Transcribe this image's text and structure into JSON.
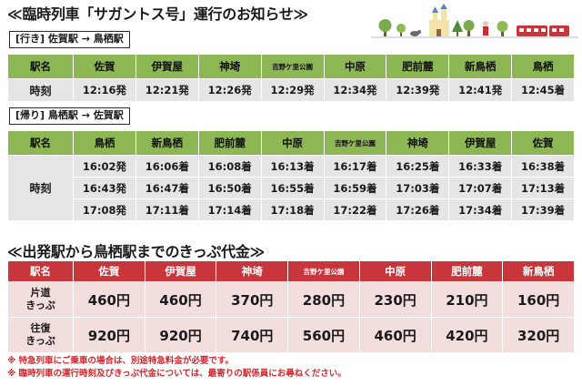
{
  "title": "≪臨時列車「サガントス号」運行のお知らせ≫",
  "outbound": {
    "route": "[行き] 佐賀駅 → 鳥栖駅",
    "header_label": "駅名",
    "stations": [
      "佐賀",
      "伊賀屋",
      "神埼",
      "吉野ケ里公園",
      "中原",
      "肥前麓",
      "新鳥栖",
      "鳥栖"
    ],
    "row_label": "時刻",
    "times": [
      "12:16発",
      "12:21発",
      "12:26発",
      "12:29発",
      "12:34発",
      "12:39発",
      "12:41発",
      "12:45着"
    ]
  },
  "return": {
    "route": "[帰り] 鳥栖駅 → 佐賀駅",
    "header_label": "駅名",
    "stations": [
      "鳥栖",
      "新鳥栖",
      "肥前麓",
      "中原",
      "吉野ケ里公園",
      "神埼",
      "伊賀屋",
      "佐賀"
    ],
    "row_label": "時刻",
    "rows": [
      [
        "16:02発",
        "16:06着",
        "16:08着",
        "16:13着",
        "16:17着",
        "16:25着",
        "16:33着",
        "16:38着"
      ],
      [
        "16:43発",
        "16:47着",
        "16:50着",
        "16:55着",
        "16:59着",
        "17:03着",
        "17:07着",
        "17:13着"
      ],
      [
        "17:08発",
        "17:11着",
        "17:14着",
        "17:18着",
        "17:22着",
        "17:26着",
        "17:34着",
        "17:39着"
      ]
    ]
  },
  "fares": {
    "title": "≪出発駅から鳥栖駅までのきっぷ代金≫",
    "header_label": "駅名",
    "stations": [
      "佐賀",
      "伊賀屋",
      "神埼",
      "吉野ケ里公園",
      "中原",
      "肥前麓",
      "新鳥栖"
    ],
    "rows": [
      {
        "label_1": "片道",
        "label_2": "きっぷ",
        "values": [
          "460円",
          "460円",
          "370円",
          "280円",
          "230円",
          "210円",
          "160円"
        ]
      },
      {
        "label_1": "往復",
        "label_2": "きっぷ",
        "values": [
          "920円",
          "920円",
          "740円",
          "560円",
          "460円",
          "420円",
          "320円"
        ]
      }
    ]
  },
  "notes": [
    "※ 特急列車にご乗車の場合は、別途特急料金が必要です。",
    "※ 臨時列車の運行時刻及びきっぷ代金については、最寄りの駅係員にお尋ねください。"
  ],
  "colors": {
    "timetable_header": "#8db654",
    "timetable_cell": "#e5e5e5",
    "fare_header": "#c8353b",
    "fare_cell": "#f3dede",
    "note_text": "#d9262c"
  }
}
